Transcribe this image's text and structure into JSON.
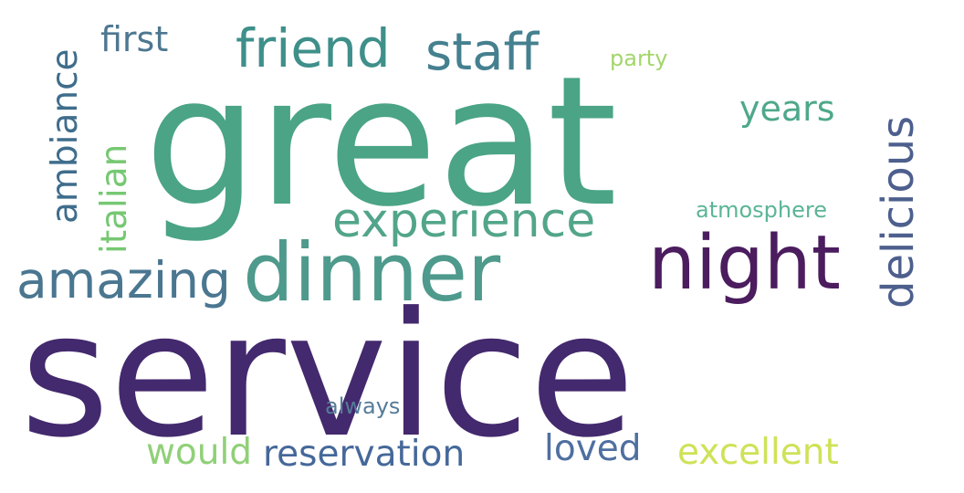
{
  "words": [
    {
      "text": "great",
      "color": "#4aa485"
    },
    {
      "text": "service",
      "color": "#43296d"
    },
    {
      "text": "dinner",
      "color": "#4e9a8c"
    },
    {
      "text": "night",
      "color": "#4b1c5e"
    },
    {
      "text": "experience",
      "color": "#52a58a"
    },
    {
      "text": "friend",
      "color": "#3f8f8a"
    },
    {
      "text": "staff",
      "color": "#45808f"
    },
    {
      "text": "amazing",
      "color": "#4a7690"
    },
    {
      "text": "delicious",
      "color": "#4d5f8d"
    },
    {
      "text": "ambiance",
      "color": "#3f6d8c"
    },
    {
      "text": "italian",
      "color": "#76c872"
    },
    {
      "text": "first",
      "color": "#4e7791"
    },
    {
      "text": "years",
      "color": "#4ea88b"
    },
    {
      "text": "party",
      "color": "#a3d56a"
    },
    {
      "text": "atmosphere",
      "color": "#5bb595"
    },
    {
      "text": "always",
      "color": "#557c99"
    },
    {
      "text": "would",
      "color": "#90d078"
    },
    {
      "text": "reservation",
      "color": "#45689a"
    },
    {
      "text": "loved",
      "color": "#4f6fa0"
    },
    {
      "text": "excellent",
      "color": "#cfe258"
    }
  ]
}
